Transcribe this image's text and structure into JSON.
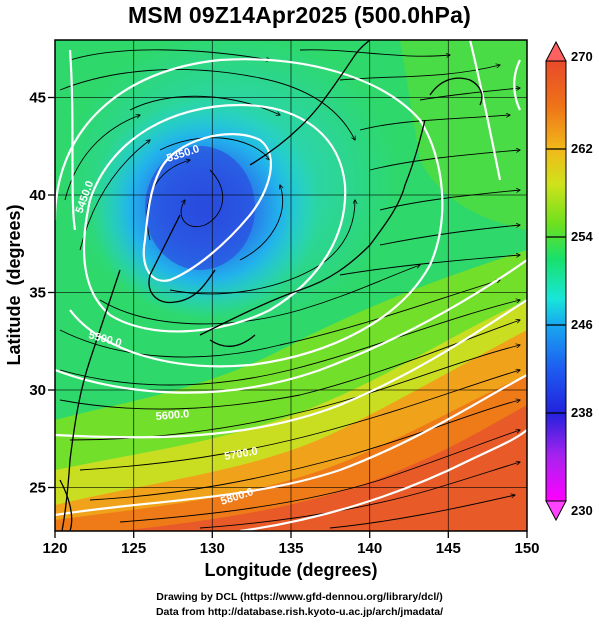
{
  "title": "MSM 09Z14Apr2025 (500.0hPa)",
  "map": {
    "xlabel": "Longitude (degrees)",
    "ylabel": "Latitude  (degrees)",
    "xlim": [
      120,
      150
    ],
    "ylim": [
      22.4,
      47.6
    ],
    "x_ticks": [
      "120",
      "125",
      "130",
      "135",
      "140",
      "145",
      "150"
    ],
    "y_ticks": [
      "25",
      "30",
      "35",
      "40",
      "45"
    ],
    "field": "temperature (K) with geopotential height contours and wind streamlines",
    "cold_low_center": {
      "lon": 128.5,
      "lat": 40.3
    },
    "contours": [
      {
        "level": "5350.0"
      },
      {
        "level": "5450.0"
      },
      {
        "level": "5500.0"
      },
      {
        "level": "5600.0"
      },
      {
        "level": "5700.0"
      },
      {
        "level": "5800.0"
      }
    ]
  },
  "colorbar": {
    "min": 230,
    "max": 270,
    "tick_labels": [
      "270",
      "262",
      "254",
      "246",
      "238",
      "230"
    ],
    "colors": [
      "#ff00ff",
      "#aa22ee",
      "#2222dd",
      "#1e5cf0",
      "#18a8f0",
      "#18e6d8",
      "#18e06c",
      "#6ee01e",
      "#cfe21a",
      "#f2b81a",
      "#ee7218",
      "#e84a2a",
      "#ff5a5a"
    ]
  },
  "credits": {
    "line1": "Drawing by DCL (https://www.gfd-dennou.org/library/dcl/)",
    "line2": "Data from http://database.rish.kyoto-u.ac.jp/arch/jmadata/"
  }
}
